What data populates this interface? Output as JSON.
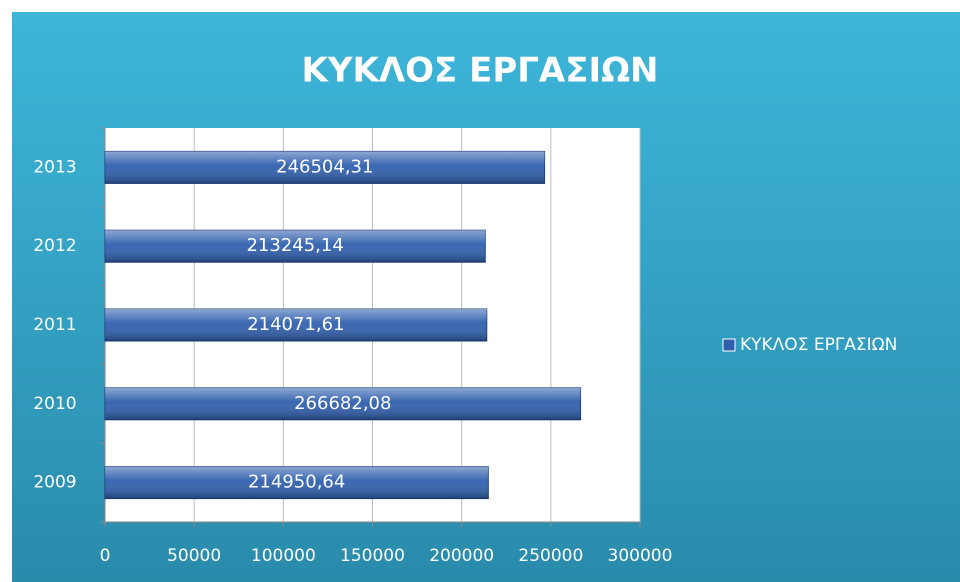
{
  "chart_data": {
    "type": "hbar",
    "title": "ΚΥΚΛΟΣ ΕΡΓΑΣΙΩΝ",
    "categories": [
      "2009",
      "2010",
      "2011",
      "2012",
      "2013"
    ],
    "series": [
      {
        "name": "ΚΥΚΛΟΣ ΕΡΓΑΣΙΩΝ",
        "color": "#2f5fae",
        "values": [
          214950.64,
          266682.08,
          214071.61,
          213245.14,
          246504.31
        ],
        "value_labels": [
          "214950,64",
          "266682,08",
          "214071,61",
          "213245,14",
          "246504,31"
        ]
      }
    ],
    "xlim": [
      0,
      300000
    ],
    "xticks": [
      0,
      50000,
      100000,
      150000,
      200000,
      250000,
      300000
    ],
    "grid": true,
    "legend": "right"
  }
}
